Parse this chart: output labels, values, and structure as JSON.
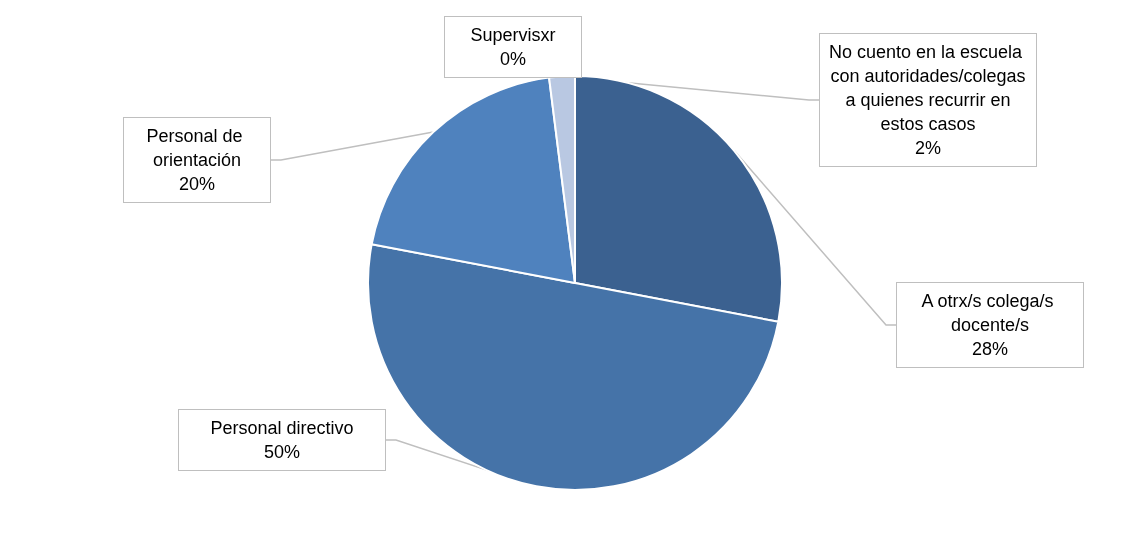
{
  "chart_data": {
    "type": "pie",
    "categories": [
      "A otrx/s colega/s docente/s",
      "Personal directivo",
      "Personal de orientación",
      "No cuento en la escuela con autoridades/colegas a quienes recurrir en estos casos",
      "Supervisxr"
    ],
    "values": [
      28,
      50,
      20,
      2,
      0
    ],
    "value_labels": [
      "28%",
      "50%",
      "20%",
      "2%",
      "0%"
    ],
    "colors": [
      "#3b6190",
      "#4573a8",
      "#4f82be",
      "#b9c8e2",
      "#a5b7d8"
    ],
    "legend": false
  }
}
